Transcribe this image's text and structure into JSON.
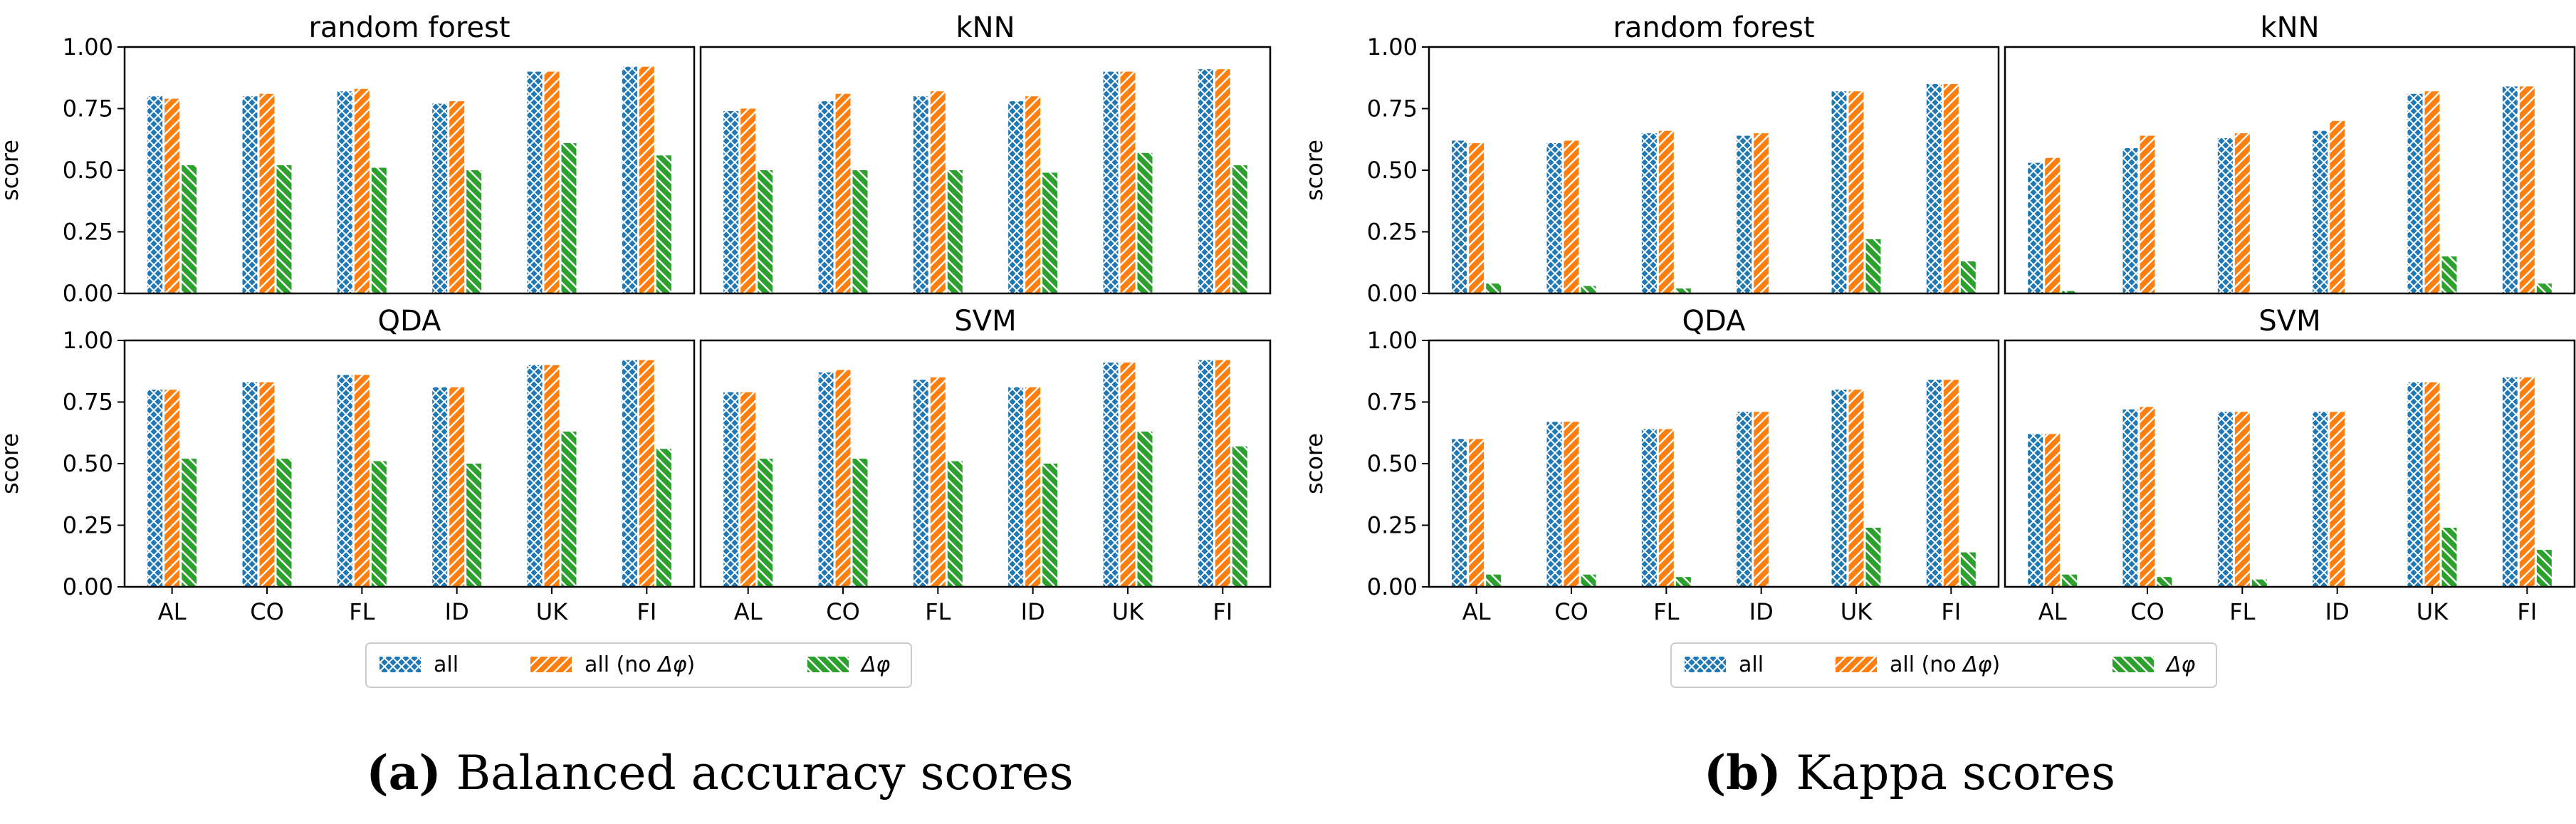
{
  "colors": {
    "all": "#1f77b4",
    "all_no_dphi": "#ff7f0e",
    "dphi": "#2ca02c"
  },
  "legend_labels": {
    "all": "all",
    "all_no_dphi_prefix": "all (no ",
    "all_no_dphi_sym": "Δφ",
    "all_no_dphi_suffix": ")",
    "dphi": "Δφ"
  },
  "figures": [
    {
      "caption": {
        "letter": "(a)",
        "text": " Balanced accuracy scores"
      },
      "ylabel": "score",
      "ylim": [
        0,
        1
      ],
      "yticks": [
        "0.00",
        "0.25",
        "0.50",
        "0.75",
        "1.00"
      ],
      "categories": [
        "AL",
        "CO",
        "FL",
        "ID",
        "UK",
        "FI"
      ]
    },
    {
      "caption": {
        "letter": "(b)",
        "text": " Kappa scores"
      },
      "ylabel": "score",
      "ylim": [
        0,
        1
      ],
      "yticks": [
        "0.00",
        "0.25",
        "0.50",
        "0.75",
        "1.00"
      ],
      "categories": [
        "AL",
        "CO",
        "FL",
        "ID",
        "UK",
        "FI"
      ]
    }
  ],
  "chart_data": [
    {
      "type": "bar",
      "figure": "a",
      "title": "random forest",
      "categories": [
        "AL",
        "CO",
        "FL",
        "ID",
        "UK",
        "FI"
      ],
      "ylabel": "score",
      "ylim": [
        0,
        1
      ],
      "series": [
        {
          "name": "all",
          "values": [
            0.8,
            0.8,
            0.82,
            0.77,
            0.9,
            0.92
          ]
        },
        {
          "name": "all (no Δφ)",
          "values": [
            0.79,
            0.81,
            0.83,
            0.78,
            0.9,
            0.92
          ]
        },
        {
          "name": "Δφ",
          "values": [
            0.52,
            0.52,
            0.51,
            0.5,
            0.61,
            0.56
          ]
        }
      ]
    },
    {
      "type": "bar",
      "figure": "a",
      "title": "kNN",
      "categories": [
        "AL",
        "CO",
        "FL",
        "ID",
        "UK",
        "FI"
      ],
      "ylabel": "",
      "ylim": [
        0,
        1
      ],
      "series": [
        {
          "name": "all",
          "values": [
            0.74,
            0.78,
            0.8,
            0.78,
            0.9,
            0.91
          ]
        },
        {
          "name": "all (no Δφ)",
          "values": [
            0.75,
            0.81,
            0.82,
            0.8,
            0.9,
            0.91
          ]
        },
        {
          "name": "Δφ",
          "values": [
            0.5,
            0.5,
            0.5,
            0.49,
            0.57,
            0.52
          ]
        }
      ]
    },
    {
      "type": "bar",
      "figure": "a",
      "title": "QDA",
      "categories": [
        "AL",
        "CO",
        "FL",
        "ID",
        "UK",
        "FI"
      ],
      "ylabel": "score",
      "ylim": [
        0,
        1
      ],
      "series": [
        {
          "name": "all",
          "values": [
            0.8,
            0.83,
            0.86,
            0.81,
            0.9,
            0.92
          ]
        },
        {
          "name": "all (no Δφ)",
          "values": [
            0.8,
            0.83,
            0.86,
            0.81,
            0.9,
            0.92
          ]
        },
        {
          "name": "Δφ",
          "values": [
            0.52,
            0.52,
            0.51,
            0.5,
            0.63,
            0.56
          ]
        }
      ]
    },
    {
      "type": "bar",
      "figure": "a",
      "title": "SVM",
      "categories": [
        "AL",
        "CO",
        "FL",
        "ID",
        "UK",
        "FI"
      ],
      "ylabel": "",
      "ylim": [
        0,
        1
      ],
      "series": [
        {
          "name": "all",
          "values": [
            0.79,
            0.87,
            0.84,
            0.81,
            0.91,
            0.92
          ]
        },
        {
          "name": "all (no Δφ)",
          "values": [
            0.79,
            0.88,
            0.85,
            0.81,
            0.91,
            0.92
          ]
        },
        {
          "name": "Δφ",
          "values": [
            0.52,
            0.52,
            0.51,
            0.5,
            0.63,
            0.57
          ]
        }
      ]
    },
    {
      "type": "bar",
      "figure": "b",
      "title": "random forest",
      "categories": [
        "AL",
        "CO",
        "FL",
        "ID",
        "UK",
        "FI"
      ],
      "ylabel": "score",
      "ylim": [
        0,
        1
      ],
      "series": [
        {
          "name": "all",
          "values": [
            0.62,
            0.61,
            0.65,
            0.64,
            0.82,
            0.85
          ]
        },
        {
          "name": "all (no Δφ)",
          "values": [
            0.61,
            0.62,
            0.66,
            0.65,
            0.82,
            0.85
          ]
        },
        {
          "name": "Δφ",
          "values": [
            0.04,
            0.03,
            0.02,
            0.0,
            0.22,
            0.13
          ]
        }
      ]
    },
    {
      "type": "bar",
      "figure": "b",
      "title": "kNN",
      "categories": [
        "AL",
        "CO",
        "FL",
        "ID",
        "UK",
        "FI"
      ],
      "ylabel": "",
      "ylim": [
        0,
        1
      ],
      "series": [
        {
          "name": "all",
          "values": [
            0.53,
            0.59,
            0.63,
            0.66,
            0.81,
            0.84
          ]
        },
        {
          "name": "all (no Δφ)",
          "values": [
            0.55,
            0.64,
            0.65,
            0.7,
            0.82,
            0.84
          ]
        },
        {
          "name": "Δφ",
          "values": [
            0.01,
            0.0,
            0.0,
            0.0,
            0.15,
            0.04
          ]
        }
      ]
    },
    {
      "type": "bar",
      "figure": "b",
      "title": "QDA",
      "categories": [
        "AL",
        "CO",
        "FL",
        "ID",
        "UK",
        "FI"
      ],
      "ylabel": "score",
      "ylim": [
        0,
        1
      ],
      "series": [
        {
          "name": "all",
          "values": [
            0.6,
            0.67,
            0.64,
            0.71,
            0.8,
            0.84
          ]
        },
        {
          "name": "all (no Δφ)",
          "values": [
            0.6,
            0.67,
            0.64,
            0.71,
            0.8,
            0.84
          ]
        },
        {
          "name": "Δφ",
          "values": [
            0.05,
            0.05,
            0.04,
            0.0,
            0.24,
            0.14
          ]
        }
      ]
    },
    {
      "type": "bar",
      "figure": "b",
      "title": "SVM",
      "categories": [
        "AL",
        "CO",
        "FL",
        "ID",
        "UK",
        "FI"
      ],
      "ylabel": "",
      "ylim": [
        0,
        1
      ],
      "series": [
        {
          "name": "all",
          "values": [
            0.62,
            0.72,
            0.71,
            0.71,
            0.83,
            0.85
          ]
        },
        {
          "name": "all (no Δφ)",
          "values": [
            0.62,
            0.73,
            0.71,
            0.71,
            0.83,
            0.85
          ]
        },
        {
          "name": "Δφ",
          "values": [
            0.05,
            0.04,
            0.03,
            0.0,
            0.24,
            0.15
          ]
        }
      ]
    }
  ]
}
